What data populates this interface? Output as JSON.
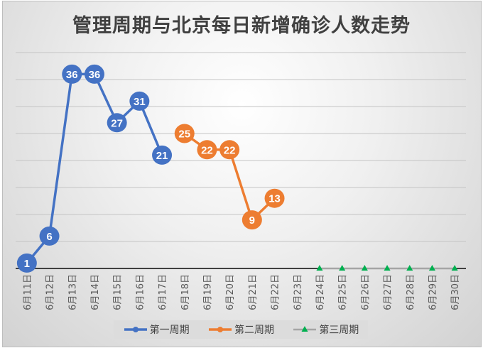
{
  "chart_data": {
    "type": "line",
    "title": "管理周期与北京每日新增确诊人数走势",
    "xlabel": "",
    "ylabel": "",
    "ylim": [
      0,
      40
    ],
    "grid_step": 5,
    "grid": true,
    "legend_position": "bottom",
    "categories": [
      "6月11日",
      "6月12日",
      "6月13日",
      "6月14日",
      "6月15日",
      "6月16日",
      "6月17日",
      "6月18日",
      "6月19日",
      "6月20日",
      "6月21日",
      "6月22日",
      "6月23日",
      "6月24日",
      "6月25日",
      "6月26日",
      "6月27日",
      "6月28日",
      "6月29日",
      "6月30日"
    ],
    "series": [
      {
        "name": "第一周期",
        "color": "#4472c4",
        "marker": "circle",
        "labels": true,
        "values": [
          1,
          6,
          36,
          36,
          27,
          31,
          21,
          null,
          null,
          null,
          null,
          null,
          null,
          null,
          null,
          null,
          null,
          null,
          null,
          null
        ]
      },
      {
        "name": "第二周期",
        "color": "#ed7d31",
        "marker": "circle",
        "labels": true,
        "values": [
          null,
          null,
          null,
          null,
          null,
          null,
          null,
          25,
          22,
          22,
          9,
          13,
          null,
          null,
          null,
          null,
          null,
          null,
          null,
          null
        ]
      },
      {
        "name": "第三周期",
        "color": "#a5a5a5",
        "marker_color": "#00b050",
        "marker": "triangle",
        "labels": false,
        "values": [
          null,
          null,
          null,
          null,
          null,
          null,
          null,
          null,
          null,
          null,
          null,
          null,
          null,
          0,
          0,
          0,
          0,
          0,
          0,
          0
        ]
      }
    ]
  }
}
